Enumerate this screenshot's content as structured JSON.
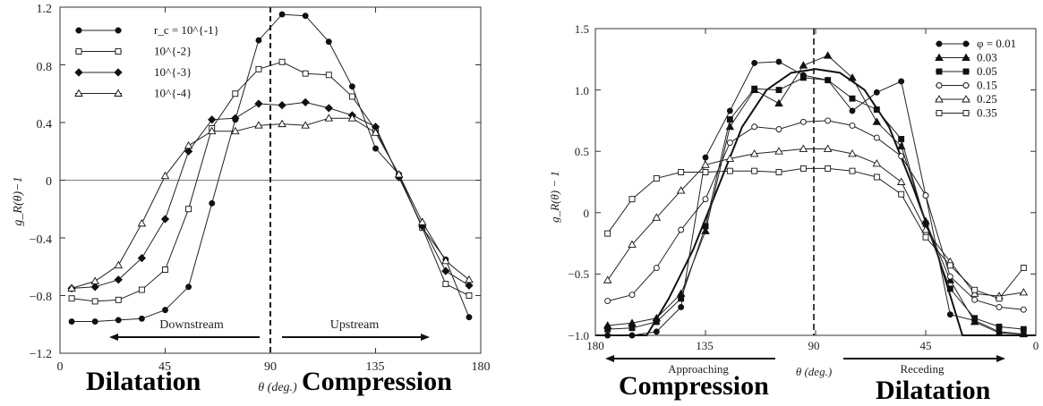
{
  "chart_data": [
    {
      "type": "line",
      "xlabel": "θ (deg.)",
      "ylabel": "g_R(θ)−1",
      "xlim": [
        0,
        180
      ],
      "ylim": [
        -1.2,
        1.2
      ],
      "x_ticks": [
        "0",
        "45",
        "90",
        "135",
        "180"
      ],
      "y_ticks": [
        "−1.2",
        "−0.8",
        "−0.4",
        "0",
        "0.4",
        "0.8",
        "1.2"
      ],
      "legend_position": "top-left",
      "x": [
        5,
        15,
        25,
        35,
        45,
        55,
        65,
        75,
        85,
        95,
        105,
        115,
        125,
        135,
        145,
        155,
        165,
        175
      ],
      "series": [
        {
          "name": "r_c = 10^{-1}",
          "marker": "filled-circle",
          "values": [
            -0.98,
            -0.98,
            -0.97,
            -0.96,
            -0.9,
            -0.74,
            -0.16,
            0.42,
            0.97,
            1.15,
            1.14,
            0.96,
            0.65,
            0.22,
            0.04,
            -0.33,
            -0.55,
            -0.95
          ]
        },
        {
          "name": "10^{-2}",
          "marker": "open-square",
          "values": [
            -0.82,
            -0.84,
            -0.83,
            -0.76,
            -0.62,
            -0.2,
            0.36,
            0.6,
            0.77,
            0.82,
            0.74,
            0.73,
            0.58,
            0.35,
            0.03,
            -0.33,
            -0.72,
            -0.8
          ]
        },
        {
          "name": "10^{-3}",
          "marker": "filled-diamond",
          "values": [
            -0.75,
            -0.74,
            -0.69,
            -0.54,
            -0.27,
            0.2,
            0.42,
            0.43,
            0.53,
            0.52,
            0.54,
            0.5,
            0.45,
            0.37,
            0.02,
            -0.32,
            -0.63,
            -0.73
          ]
        },
        {
          "name": "10^{-4}",
          "marker": "open-triangle",
          "values": [
            -0.75,
            -0.7,
            -0.59,
            -0.3,
            0.03,
            0.24,
            0.34,
            0.34,
            0.38,
            0.39,
            0.38,
            0.43,
            0.43,
            0.33,
            0.04,
            -0.29,
            -0.56,
            -0.69
          ]
        }
      ],
      "annotations": [
        "Downstream",
        "Upstream"
      ]
    },
    {
      "type": "line",
      "xlabel": "θ (deg.)",
      "ylabel": "g_R(θ) − 1",
      "xlim": [
        180,
        0
      ],
      "ylim": [
        -1.0,
        1.5
      ],
      "x_ticks": [
        "180",
        "135",
        "90",
        "45",
        "0"
      ],
      "y_ticks": [
        "−1.0",
        "−0.5",
        "0",
        "0.5",
        "1.0",
        "1.5"
      ],
      "legend_position": "top-right",
      "x": [
        175,
        165,
        155,
        145,
        135,
        125,
        115,
        105,
        95,
        85,
        75,
        65,
        55,
        45,
        35,
        25,
        15,
        5
      ],
      "series": [
        {
          "name": "φ = 0.01",
          "marker": "filled-circle",
          "values": [
            -1.0,
            -1.0,
            -0.97,
            -0.77,
            0.45,
            0.83,
            1.22,
            1.23,
            1.12,
            1.08,
            0.83,
            0.98,
            1.07,
            0.14,
            -0.83,
            -0.88,
            -0.97,
            -0.99
          ]
        },
        {
          "name": "0.03",
          "marker": "filled-triangle",
          "values": [
            -0.92,
            -0.9,
            -0.86,
            -0.66,
            -0.15,
            0.7,
            1.0,
            0.89,
            1.2,
            1.28,
            1.1,
            0.74,
            0.54,
            -0.07,
            -0.55,
            -0.89,
            -0.98,
            -0.99
          ]
        },
        {
          "name": "0.05",
          "marker": "filled-square",
          "values": [
            -0.95,
            -0.94,
            -0.89,
            -0.7,
            -0.11,
            0.76,
            1.01,
            1.0,
            1.1,
            1.08,
            0.93,
            0.84,
            0.6,
            -0.09,
            -0.62,
            -0.86,
            -0.93,
            -0.95
          ]
        },
        {
          "name": "0.15",
          "marker": "open-circle",
          "values": [
            -0.72,
            -0.67,
            -0.45,
            -0.14,
            0.11,
            0.57,
            0.7,
            0.68,
            0.74,
            0.75,
            0.71,
            0.61,
            0.46,
            0.14,
            -0.52,
            -0.71,
            -0.77,
            -0.79
          ]
        },
        {
          "name": "0.25",
          "marker": "open-triangle",
          "values": [
            -0.55,
            -0.26,
            -0.04,
            0.18,
            0.39,
            0.44,
            0.48,
            0.5,
            0.52,
            0.52,
            0.48,
            0.4,
            0.25,
            -0.14,
            -0.4,
            -0.66,
            -0.68,
            -0.65
          ]
        },
        {
          "name": "0.35",
          "marker": "open-square",
          "values": [
            -0.17,
            0.11,
            0.28,
            0.33,
            0.33,
            0.34,
            0.34,
            0.33,
            0.36,
            0.36,
            0.34,
            0.29,
            0.15,
            -0.2,
            -0.43,
            -0.63,
            -0.7,
            -0.45
          ]
        }
      ],
      "smooth_curve": {
        "x": [
          180,
          159,
          150,
          140,
          130,
          120,
          110,
          100,
          90,
          80,
          70,
          60,
          50,
          40,
          30,
          0
        ],
        "values": [
          -1.0,
          -1.0,
          -0.7,
          -0.3,
          0.2,
          0.7,
          1.0,
          1.14,
          1.17,
          1.14,
          1.0,
          0.7,
          0.2,
          -0.35,
          -1.0,
          -1.0
        ]
      },
      "annotations": [
        "Approaching",
        "Receding"
      ]
    }
  ],
  "captions": {
    "left_dilatation": "Dilatation",
    "left_compression": "Compression",
    "right_compression": "Compression",
    "right_dilatation": "Dilatation"
  }
}
